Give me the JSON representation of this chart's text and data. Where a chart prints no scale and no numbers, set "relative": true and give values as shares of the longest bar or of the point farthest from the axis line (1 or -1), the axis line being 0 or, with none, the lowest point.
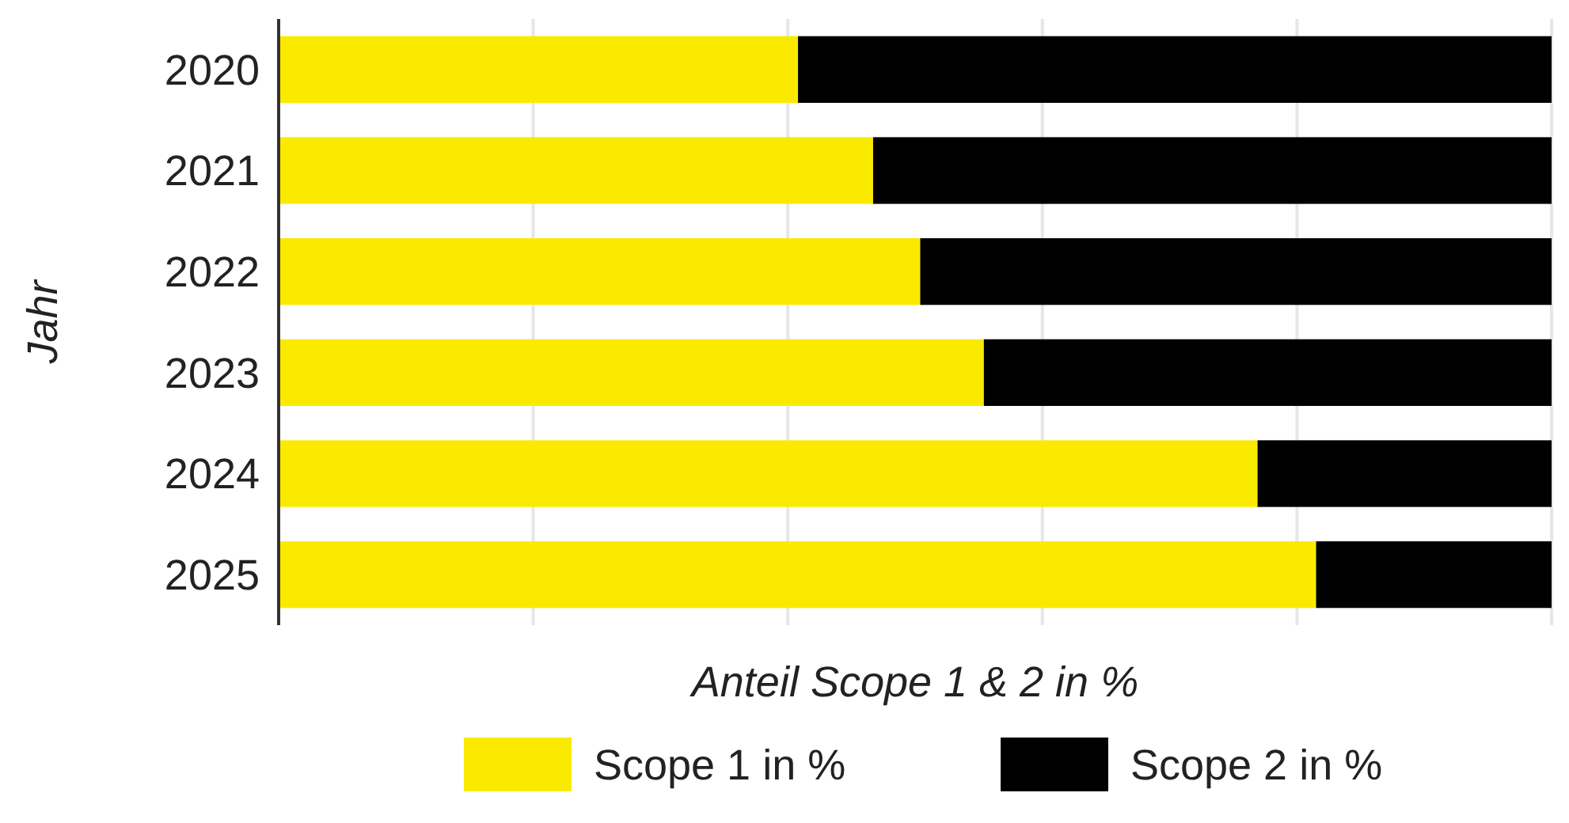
{
  "chart_data": {
    "type": "bar",
    "orientation": "horizontal",
    "stacked": true,
    "relative": true,
    "xlabel": "Anteil Scope 1 & 2 in %",
    "ylabel": "Jahr",
    "categories": [
      "2020",
      "2021",
      "2022",
      "2023",
      "2024",
      "2025"
    ],
    "series": [
      {
        "name": "Scope 1 in %",
        "color": "#faea00",
        "values": [
          0.408,
          0.467,
          0.504,
          0.554,
          0.769,
          0.815
        ]
      },
      {
        "name": "Scope 2 in %",
        "color": "#000000",
        "values": [
          0.592,
          0.533,
          0.496,
          0.446,
          0.231,
          0.185
        ]
      }
    ],
    "grid": "x",
    "legend": "bottom"
  }
}
